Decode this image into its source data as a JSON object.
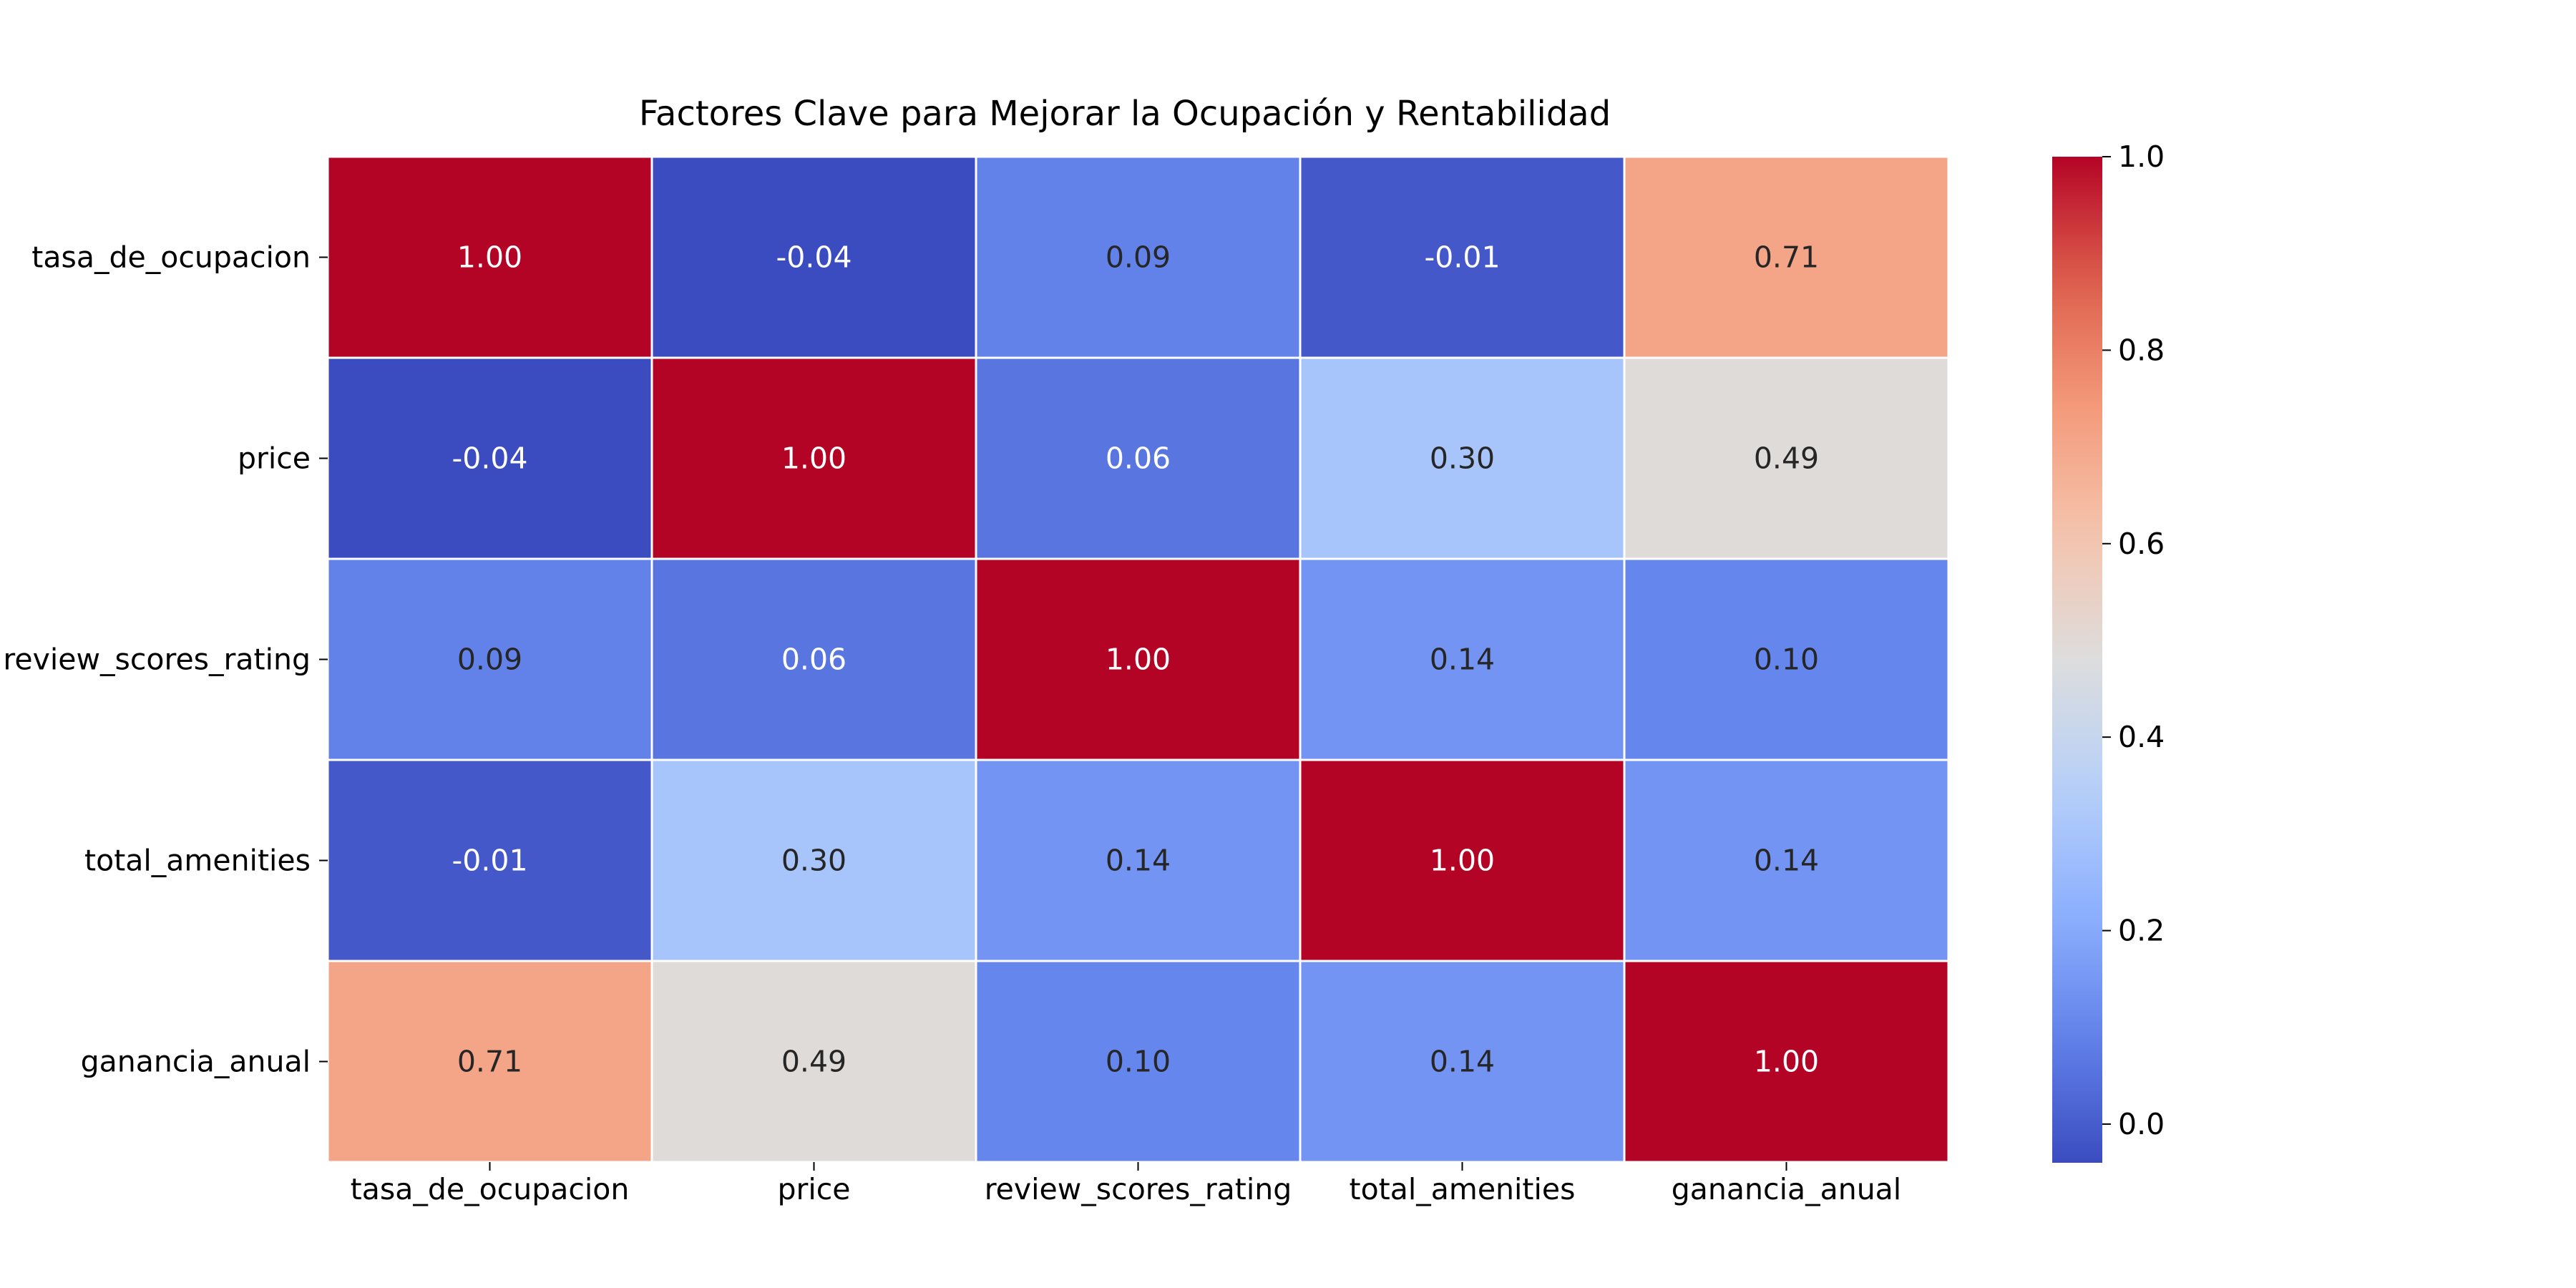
{
  "chart_data": {
    "type": "heatmap",
    "title": "Factores Clave para Mejorar la Ocupación y Rentabilidad",
    "rows": [
      "tasa_de_ocupacion",
      "price",
      "review_scores_rating",
      "total_amenities",
      "ganancia_anual"
    ],
    "columns": [
      "tasa_de_ocupacion",
      "price",
      "review_scores_rating",
      "total_amenities",
      "ganancia_anual"
    ],
    "values": [
      [
        1.0,
        -0.04,
        0.09,
        -0.01,
        0.71
      ],
      [
        -0.04,
        1.0,
        0.06,
        0.3,
        0.49
      ],
      [
        0.09,
        0.06,
        1.0,
        0.14,
        0.1
      ],
      [
        -0.01,
        0.3,
        0.14,
        1.0,
        0.14
      ],
      [
        0.71,
        0.49,
        0.1,
        0.14,
        1.0
      ]
    ],
    "value_format": "0.00",
    "colormap": "coolwarm",
    "vmin": -0.04,
    "vmax": 1.0,
    "colorbar": {
      "ticks": [
        0.0,
        0.2,
        0.4,
        0.6,
        0.8,
        1.0
      ],
      "tick_labels": [
        "0.0",
        "0.2",
        "0.4",
        "0.6",
        "0.8",
        "1.0"
      ]
    },
    "cell_border_color": "#ffffff",
    "label_colors": {
      "dark": "#262626",
      "light": "#ffffff"
    }
  }
}
